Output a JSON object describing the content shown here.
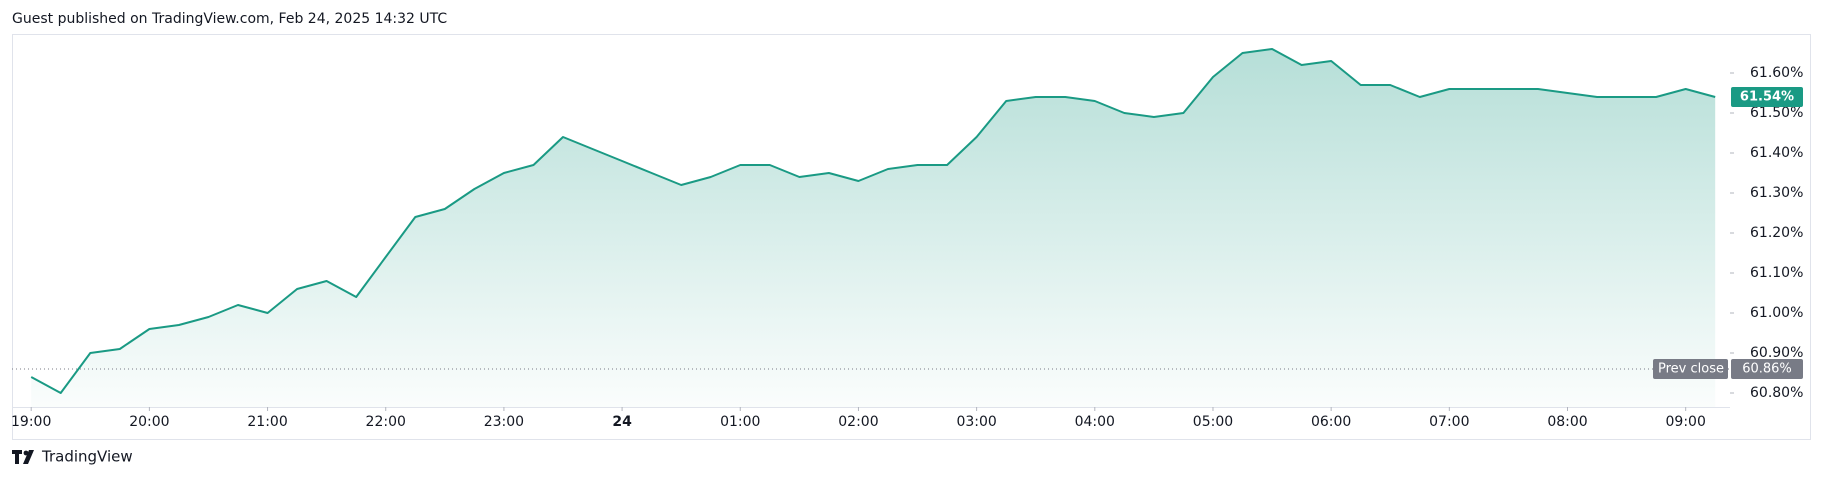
{
  "header": "Guest published on TradingView.com, Feb 24, 2025 14:32 UTC",
  "footer": "TradingView",
  "chart_data": {
    "type": "area",
    "color": "#1a9a84",
    "values": [
      60.84,
      60.8,
      60.9,
      60.91,
      60.96,
      60.97,
      60.99,
      61.02,
      61.0,
      61.06,
      61.08,
      61.04,
      61.14,
      61.24,
      61.26,
      61.31,
      61.35,
      61.37,
      61.44,
      61.41,
      61.38,
      61.35,
      61.32,
      61.34,
      61.37,
      61.37,
      61.34,
      61.35,
      61.33,
      61.36,
      61.37,
      61.37,
      61.44,
      61.53,
      61.54,
      61.54,
      61.53,
      61.5,
      61.49,
      61.5,
      61.59,
      61.65,
      61.66,
      61.62,
      61.63,
      61.57,
      61.57,
      61.54,
      61.56,
      61.56,
      61.56,
      61.56,
      61.55,
      61.54,
      61.54,
      61.54,
      61.56,
      61.54
    ],
    "last_value_label": "61.54%",
    "prev_close": {
      "value": 60.86,
      "label": "60.86%",
      "name": "Prev close"
    },
    "xlim": [
      -0.65,
      57.5
    ],
    "xticks": [
      {
        "value": 0,
        "label": "19:00"
      },
      {
        "value": 4,
        "label": "20:00"
      },
      {
        "value": 8,
        "label": "21:00"
      },
      {
        "value": 12,
        "label": "22:00"
      },
      {
        "value": 16,
        "label": "23:00"
      },
      {
        "value": 20,
        "label": "24",
        "bold": true
      },
      {
        "value": 24,
        "label": "01:00"
      },
      {
        "value": 28,
        "label": "02:00"
      },
      {
        "value": 32,
        "label": "03:00"
      },
      {
        "value": 36,
        "label": "04:00"
      },
      {
        "value": 40,
        "label": "05:00"
      },
      {
        "value": 44,
        "label": "06:00"
      },
      {
        "value": 48,
        "label": "07:00"
      },
      {
        "value": 52,
        "label": "08:00"
      },
      {
        "value": 56,
        "label": "09:00"
      }
    ],
    "ylim": [
      60.765,
      61.695
    ],
    "yticks": [
      {
        "value": 60.8,
        "label": "60.80%"
      },
      {
        "value": 60.9,
        "label": "60.90%"
      },
      {
        "value": 61.0,
        "label": "61.00%"
      },
      {
        "value": 61.1,
        "label": "61.10%"
      },
      {
        "value": 61.2,
        "label": "61.20%"
      },
      {
        "value": 61.3,
        "label": "61.30%"
      },
      {
        "value": 61.4,
        "label": "61.40%"
      },
      {
        "value": 61.5,
        "label": "61.50%"
      },
      {
        "value": 61.6,
        "label": "61.60%"
      }
    ]
  }
}
